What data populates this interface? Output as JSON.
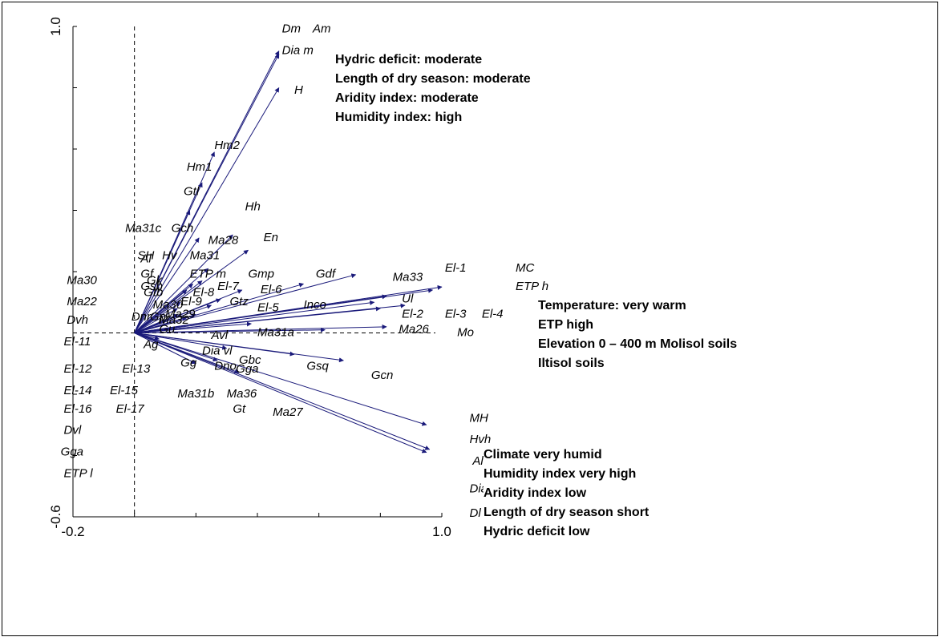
{
  "chart_data": {
    "type": "scatter",
    "subtype": "biplot-arrows",
    "xlim": [
      -0.2,
      1.0
    ],
    "ylim": [
      -0.6,
      1.0
    ],
    "x_tick_labels": [
      "-0.2",
      "1.0"
    ],
    "y_tick_labels": [
      "-0.6",
      "1.0"
    ],
    "reference_lines": {
      "x": 0,
      "y": 0
    },
    "arrow_color": "#1a1a7a",
    "vectors": [
      {
        "x": 0.47,
        "y": 0.92
      },
      {
        "x": 0.47,
        "y": 0.91
      },
      {
        "x": 0.47,
        "y": 0.8
      },
      {
        "x": 0.26,
        "y": 0.59
      },
      {
        "x": 0.22,
        "y": 0.49
      },
      {
        "x": 0.18,
        "y": 0.4
      },
      {
        "x": 0.21,
        "y": 0.31
      },
      {
        "x": 0.32,
        "y": 0.32
      },
      {
        "x": 0.37,
        "y": 0.27
      },
      {
        "x": 0.24,
        "y": 0.21
      },
      {
        "x": 0.22,
        "y": 0.17
      },
      {
        "x": 0.19,
        "y": 0.16
      },
      {
        "x": 0.17,
        "y": 0.14
      },
      {
        "x": 0.55,
        "y": 0.16
      },
      {
        "x": 0.72,
        "y": 0.19
      },
      {
        "x": 1.0,
        "y": 0.15
      },
      {
        "x": 0.97,
        "y": 0.14
      },
      {
        "x": 0.82,
        "y": 0.12
      },
      {
        "x": 0.78,
        "y": 0.1
      },
      {
        "x": 0.8,
        "y": 0.08
      },
      {
        "x": 0.88,
        "y": 0.09
      },
      {
        "x": 0.82,
        "y": 0.02
      },
      {
        "x": 0.62,
        "y": 0.01
      },
      {
        "x": 0.38,
        "y": 0.03
      },
      {
        "x": 0.68,
        "y": -0.09
      },
      {
        "x": 0.52,
        "y": -0.07
      },
      {
        "x": 0.95,
        "y": -0.3
      },
      {
        "x": 0.96,
        "y": -0.38
      },
      {
        "x": 0.95,
        "y": -0.39
      },
      {
        "x": 0.35,
        "y": 0.14
      },
      {
        "x": 0.28,
        "y": 0.11
      },
      {
        "x": 0.25,
        "y": 0.09
      },
      {
        "x": 0.2,
        "y": 0.06
      },
      {
        "x": 0.17,
        "y": 0.05
      },
      {
        "x": 0.15,
        "y": 0.1
      },
      {
        "x": 0.14,
        "y": 0.08
      },
      {
        "x": 0.14,
        "y": 0.06
      },
      {
        "x": 0.3,
        "y": -0.05
      },
      {
        "x": 0.27,
        "y": -0.09
      },
      {
        "x": 0.34,
        "y": -0.13
      },
      {
        "x": 0.2,
        "y": -0.1
      },
      {
        "x": 0.08,
        "y": -0.02
      }
    ],
    "labels": [
      {
        "text": "Dm",
        "x": 0.48,
        "y": 0.98
      },
      {
        "text": "Am",
        "x": 0.58,
        "y": 0.98
      },
      {
        "text": "Dia m",
        "x": 0.48,
        "y": 0.91
      },
      {
        "text": "H",
        "x": 0.52,
        "y": 0.78
      },
      {
        "text": "Hm2",
        "x": 0.26,
        "y": 0.6
      },
      {
        "text": "Hm1",
        "x": 0.17,
        "y": 0.53
      },
      {
        "text": "Gtl",
        "x": 0.16,
        "y": 0.45
      },
      {
        "text": "Hh",
        "x": 0.36,
        "y": 0.4
      },
      {
        "text": "Ma31c",
        "x": -0.03,
        "y": 0.33
      },
      {
        "text": "Gch",
        "x": 0.12,
        "y": 0.33
      },
      {
        "text": "Ma28",
        "x": 0.24,
        "y": 0.29
      },
      {
        "text": "En",
        "x": 0.42,
        "y": 0.3
      },
      {
        "text": "SH",
        "x": 0.01,
        "y": 0.24
      },
      {
        "text": "Hv",
        "x": 0.09,
        "y": 0.24
      },
      {
        "text": "Ma31",
        "x": 0.18,
        "y": 0.24
      },
      {
        "text": "Ma30",
        "x": -0.22,
        "y": 0.16
      },
      {
        "text": "ETP m",
        "x": 0.18,
        "y": 0.18
      },
      {
        "text": "Gmp",
        "x": 0.37,
        "y": 0.18
      },
      {
        "text": "Gdf",
        "x": 0.59,
        "y": 0.18
      },
      {
        "text": "Ma33",
        "x": 0.84,
        "y": 0.17
      },
      {
        "text": "El-1",
        "x": 1.01,
        "y": 0.2
      },
      {
        "text": "MC",
        "x": 1.24,
        "y": 0.2
      },
      {
        "text": "ETP h",
        "x": 1.24,
        "y": 0.14
      },
      {
        "text": "Ma22",
        "x": -0.22,
        "y": 0.09
      },
      {
        "text": "El-7",
        "x": 0.27,
        "y": 0.14
      },
      {
        "text": "El-6",
        "x": 0.41,
        "y": 0.13
      },
      {
        "text": "El-8",
        "x": 0.19,
        "y": 0.12
      },
      {
        "text": "El-9",
        "x": 0.15,
        "y": 0.09
      },
      {
        "text": "Gtz",
        "x": 0.31,
        "y": 0.09
      },
      {
        "text": "Inco",
        "x": 0.55,
        "y": 0.08
      },
      {
        "text": "Ul",
        "x": 0.87,
        "y": 0.1
      },
      {
        "text": "Dvh",
        "x": -0.22,
        "y": 0.03
      },
      {
        "text": "El-5",
        "x": 0.4,
        "y": 0.07
      },
      {
        "text": "El-2",
        "x": 0.87,
        "y": 0.05
      },
      {
        "text": "El-3",
        "x": 1.01,
        "y": 0.05
      },
      {
        "text": "El-4",
        "x": 1.13,
        "y": 0.05
      },
      {
        "text": "Ma29",
        "x": 0.1,
        "y": 0.05
      },
      {
        "text": "Ma26",
        "x": 0.86,
        "y": 0.0
      },
      {
        "text": "Mo",
        "x": 1.05,
        "y": -0.01
      },
      {
        "text": "Avl",
        "x": 0.25,
        "y": -0.02
      },
      {
        "text": "Ma31a",
        "x": 0.4,
        "y": -0.01
      },
      {
        "text": "El-11",
        "x": -0.23,
        "y": -0.04
      },
      {
        "text": "Dia vl",
        "x": 0.22,
        "y": -0.07
      },
      {
        "text": "Gbc",
        "x": 0.34,
        "y": -0.1
      },
      {
        "text": "Gsq",
        "x": 0.56,
        "y": -0.12
      },
      {
        "text": "El-13",
        "x": -0.04,
        "y": -0.13
      },
      {
        "text": "Gg",
        "x": 0.15,
        "y": -0.11
      },
      {
        "text": "Dno",
        "x": 0.26,
        "y": -0.12
      },
      {
        "text": "Gga",
        "x": 0.33,
        "y": -0.13
      },
      {
        "text": "Gcn",
        "x": 0.77,
        "y": -0.15
      },
      {
        "text": "El-12",
        "x": -0.23,
        "y": -0.13
      },
      {
        "text": "El-14",
        "x": -0.23,
        "y": -0.2
      },
      {
        "text": "El-15",
        "x": -0.08,
        "y": -0.2
      },
      {
        "text": "Ma31b",
        "x": 0.14,
        "y": -0.21
      },
      {
        "text": "Ma36",
        "x": 0.3,
        "y": -0.21
      },
      {
        "text": "El-16",
        "x": -0.23,
        "y": -0.26
      },
      {
        "text": "El-17",
        "x": -0.06,
        "y": -0.26
      },
      {
        "text": "Gt",
        "x": 0.32,
        "y": -0.26
      },
      {
        "text": "Ma27",
        "x": 0.45,
        "y": -0.27
      },
      {
        "text": "Dvl",
        "x": -0.23,
        "y": -0.33
      },
      {
        "text": "MH",
        "x": 1.09,
        "y": -0.29
      },
      {
        "text": "Hvh",
        "x": 1.09,
        "y": -0.36
      },
      {
        "text": "Al",
        "x": 1.1,
        "y": -0.43
      },
      {
        "text": "Gga",
        "x": -0.24,
        "y": -0.4
      },
      {
        "text": "ETP l",
        "x": -0.23,
        "y": -0.47
      },
      {
        "text": "Dia l",
        "x": 1.09,
        "y": -0.52
      },
      {
        "text": "Dl",
        "x": 1.09,
        "y": -0.6
      }
    ],
    "cluster_labels": [
      {
        "text": "Al",
        "x": 0.02,
        "y": 0.23
      },
      {
        "text": "Gf",
        "x": 0.02,
        "y": 0.18
      },
      {
        "text": "Gk",
        "x": 0.04,
        "y": 0.16
      },
      {
        "text": "Gsb",
        "x": 0.02,
        "y": 0.14
      },
      {
        "text": "Gtb",
        "x": 0.03,
        "y": 0.12
      },
      {
        "text": "Ma30",
        "x": 0.06,
        "y": 0.08
      },
      {
        "text": "Dnr",
        "x": -0.01,
        "y": 0.04
      },
      {
        "text": "Gp",
        "x": 0.05,
        "y": 0.04
      },
      {
        "text": "Ma32",
        "x": 0.08,
        "y": 0.03
      },
      {
        "text": "Gu",
        "x": 0.08,
        "y": 0.0
      },
      {
        "text": "Ag",
        "x": 0.03,
        "y": -0.05
      }
    ]
  },
  "annotations": {
    "top_box": [
      "Hydric deficit: moderate",
      "Length of dry season: moderate",
      "Aridity index: moderate",
      "Humidity index: high"
    ],
    "right_box": [
      "Temperature: very warm",
      "ETP high",
      "Elevation 0 – 400 m Molisol soils",
      "Iltisol soils"
    ],
    "bottom_box": [
      "Climate very humid",
      "Humidity index very high",
      "Aridity index low",
      "Length of dry season short",
      "Hydric deficit low"
    ]
  }
}
